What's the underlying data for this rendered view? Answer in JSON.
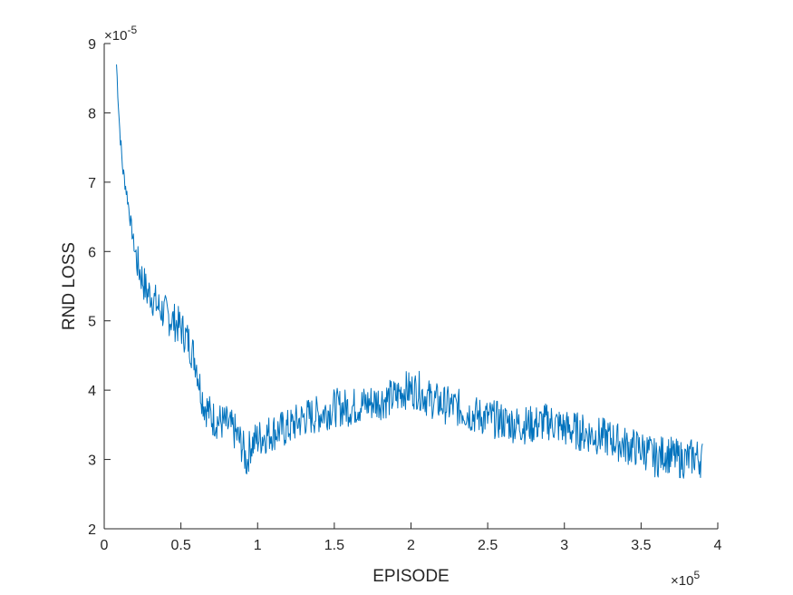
{
  "chart_data": {
    "type": "line",
    "title": "",
    "xlabel": "EPISODE",
    "ylabel": "RND LOSS",
    "xlim": [
      0,
      400000
    ],
    "ylim": [
      2e-05,
      9e-05
    ],
    "x_ticks": [
      0,
      50000,
      100000,
      150000,
      200000,
      250000,
      300000,
      350000,
      400000
    ],
    "x_tick_labels": [
      "0",
      "0.5",
      "1",
      "1.5",
      "2",
      "2.5",
      "3",
      "3.5",
      "4"
    ],
    "y_ticks": [
      2e-05,
      3e-05,
      4e-05,
      5e-05,
      6e-05,
      7e-05,
      8e-05,
      9e-05
    ],
    "y_tick_labels": [
      "2",
      "3",
      "4",
      "5",
      "6",
      "7",
      "8",
      "9"
    ],
    "x_multiplier": {
      "base": "×10",
      "exponent": "5"
    },
    "y_multiplier": {
      "base": "×10",
      "exponent": "-5"
    },
    "grid": false,
    "line_color": "#0072BD",
    "series": [
      {
        "x": [
          8000,
          10000,
          12000,
          15000,
          18000,
          20000,
          22000,
          25000,
          28000,
          30000,
          35000,
          40000,
          45000,
          50000,
          55000,
          60000,
          62000,
          65000,
          68000,
          70000,
          75000,
          80000,
          85000,
          90000,
          93000,
          95000,
          100000,
          105000,
          110000,
          120000,
          130000,
          140000,
          150000,
          160000,
          170000,
          180000,
          190000,
          195000,
          200000,
          205000,
          210000,
          220000,
          230000,
          240000,
          250000,
          260000,
          270000,
          280000,
          290000,
          300000,
          310000,
          320000,
          330000,
          340000,
          350000,
          355000,
          360000,
          365000,
          370000,
          375000,
          380000,
          385000,
          390000
        ],
        "y": [
          8.7e-05,
          7.8e-05,
          7.2e-05,
          6.8e-05,
          6.3e-05,
          6e-05,
          5.8e-05,
          5.6e-05,
          5.4e-05,
          5.4e-05,
          5.2e-05,
          5.1e-05,
          5e-05,
          4.9e-05,
          4.7e-05,
          4.4e-05,
          4.1e-05,
          3.8e-05,
          3.7e-05,
          3.6e-05,
          3.55e-05,
          3.5e-05,
          3.4e-05,
          3.2e-05,
          2.95e-05,
          3.2e-05,
          3.3e-05,
          3.35e-05,
          3.4e-05,
          3.45e-05,
          3.6e-05,
          3.65e-05,
          3.75e-05,
          3.75e-05,
          3.8e-05,
          3.85e-05,
          3.9e-05,
          4e-05,
          4e-05,
          4e-05,
          3.9e-05,
          3.8e-05,
          3.75e-05,
          3.65e-05,
          3.6e-05,
          3.55e-05,
          3.5e-05,
          3.5e-05,
          3.55e-05,
          3.45e-05,
          3.4e-05,
          3.35e-05,
          3.3e-05,
          3.2e-05,
          3.15e-05,
          3.1e-05,
          3e-05,
          3.1e-05,
          3.05e-05,
          3e-05,
          3e-05,
          3.05e-05,
          3e-05
        ]
      }
    ]
  }
}
